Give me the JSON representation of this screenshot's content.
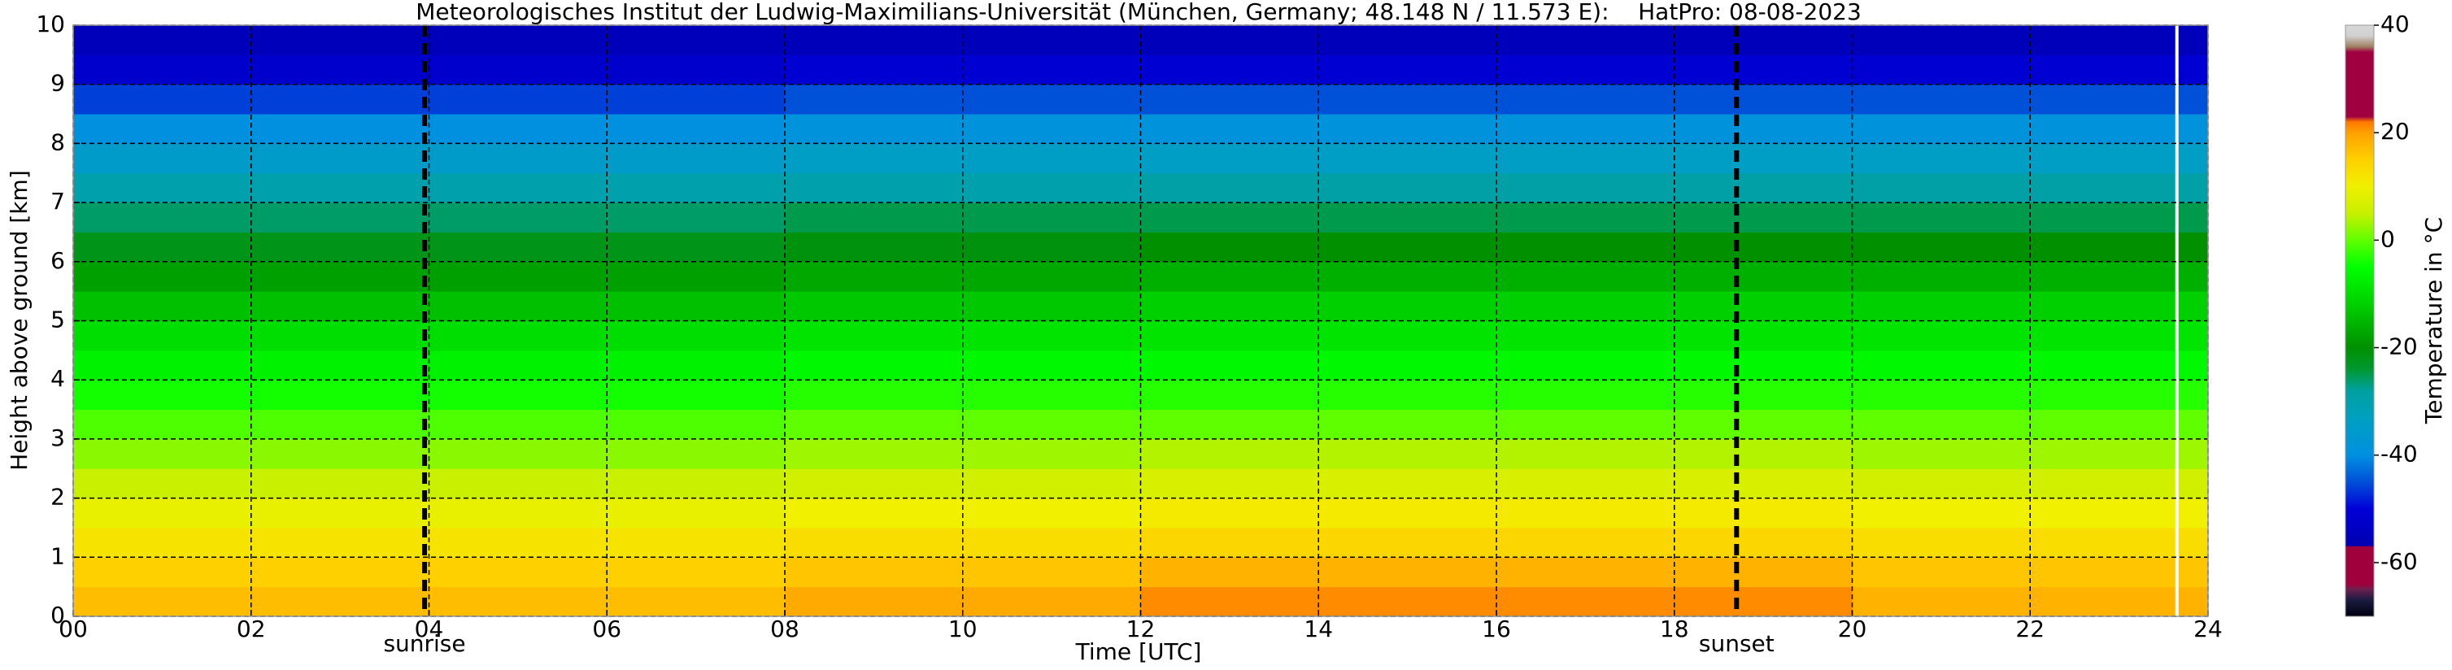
{
  "chart_data": {
    "type": "heatmap",
    "title": "Meteorologisches Institut der Ludwig-Maximilians-Universität (München, Germany; 48.148 N / 11.573 E):    HatPro: 08-08-2023",
    "x_label": "Time [UTC]",
    "y_label": "Height above ground [km]",
    "colorbar_label": "Temperature in °C",
    "x_edges": [
      0,
      4,
      8,
      12,
      16,
      20,
      24
    ],
    "y_edges": [
      0,
      0.5,
      1,
      1.5,
      2,
      2.5,
      3,
      3.5,
      4,
      4.5,
      5,
      5.5,
      6,
      6.5,
      7,
      7.5,
      8,
      8.5,
      9,
      9.5,
      10
    ],
    "values": [
      [
        17,
        17,
        19,
        21,
        21,
        18
      ],
      [
        15,
        15,
        16,
        18,
        18,
        16
      ],
      [
        12,
        12,
        13,
        14,
        14,
        13
      ],
      [
        9,
        9,
        10,
        11,
        11,
        10
      ],
      [
        5,
        5,
        6,
        7,
        7,
        6
      ],
      [
        2,
        2,
        3,
        4,
        4,
        3
      ],
      [
        -1,
        -1,
        0,
        0,
        0,
        0
      ],
      [
        -4,
        -4,
        -3,
        -3,
        -3,
        -3
      ],
      [
        -7,
        -7,
        -6,
        -6,
        -6,
        -6
      ],
      [
        -10,
        -10,
        -9,
        -9,
        -9,
        -9
      ],
      [
        -14,
        -14,
        -13,
        -12,
        -12,
        -12
      ],
      [
        -18,
        -18,
        -17,
        -16,
        -16,
        -16
      ],
      [
        -22,
        -22,
        -21,
        -20,
        -20,
        -20
      ],
      [
        -26,
        -26,
        -25,
        -25,
        -25,
        -25
      ],
      [
        -30,
        -30,
        -30,
        -29,
        -29,
        -29
      ],
      [
        -35,
        -35,
        -34,
        -34,
        -34,
        -34
      ],
      [
        -40,
        -40,
        -39,
        -39,
        -39,
        -39
      ],
      [
        -46,
        -46,
        -45,
        -45,
        -45,
        -45
      ],
      [
        -52,
        -52,
        -51,
        -51,
        -51,
        -51
      ],
      [
        -55,
        -55,
        -55,
        -55,
        -55,
        -55
      ]
    ],
    "xlim": [
      0,
      24
    ],
    "xticks": [
      {
        "value": 0,
        "label": "00"
      },
      {
        "value": 2,
        "label": "02"
      },
      {
        "value": 4,
        "label": "04"
      },
      {
        "value": 6,
        "label": "06"
      },
      {
        "value": 8,
        "label": "08"
      },
      10,
      12,
      14,
      16,
      18,
      20,
      22,
      24
    ],
    "ylim": [
      0,
      10
    ],
    "yticks": [
      0,
      1,
      2,
      3,
      4,
      5,
      6,
      7,
      8,
      9,
      10
    ],
    "clim": [
      -70,
      40
    ],
    "cticks": [
      -60,
      -40,
      -20,
      0,
      20,
      40
    ],
    "grid": true,
    "vlines": [
      {
        "x": 3.95,
        "label": "sunrise"
      },
      {
        "x": 18.7,
        "label": "sunset"
      }
    ],
    "gap_x": 23.65,
    "colorscale": [
      [
        -70,
        "#000010"
      ],
      [
        -67,
        "#1a1a40"
      ],
      [
        -65,
        "#6a2050"
      ],
      [
        -64,
        "#a0003c"
      ],
      [
        -57,
        "#a0003c"
      ],
      [
        -56.9,
        "#0000b0"
      ],
      [
        -50,
        "#0000d8"
      ],
      [
        -45,
        "#0050d8"
      ],
      [
        -40,
        "#0090e0"
      ],
      [
        -33,
        "#00a0c0"
      ],
      [
        -28,
        "#00a0a0"
      ],
      [
        -24,
        "#009830"
      ],
      [
        -20,
        "#009000"
      ],
      [
        -12,
        "#00d000"
      ],
      [
        -5,
        "#00ff00"
      ],
      [
        0,
        "#60ff00"
      ],
      [
        5,
        "#c8f000"
      ],
      [
        10,
        "#f0f000"
      ],
      [
        15,
        "#ffd000"
      ],
      [
        20,
        "#ffa000"
      ],
      [
        22,
        "#ff7800"
      ],
      [
        23,
        "#a00040"
      ],
      [
        35,
        "#a00040"
      ],
      [
        36,
        "#a08060"
      ],
      [
        38,
        "#d0d0d0"
      ],
      [
        40,
        "#d8d8d8"
      ]
    ]
  }
}
